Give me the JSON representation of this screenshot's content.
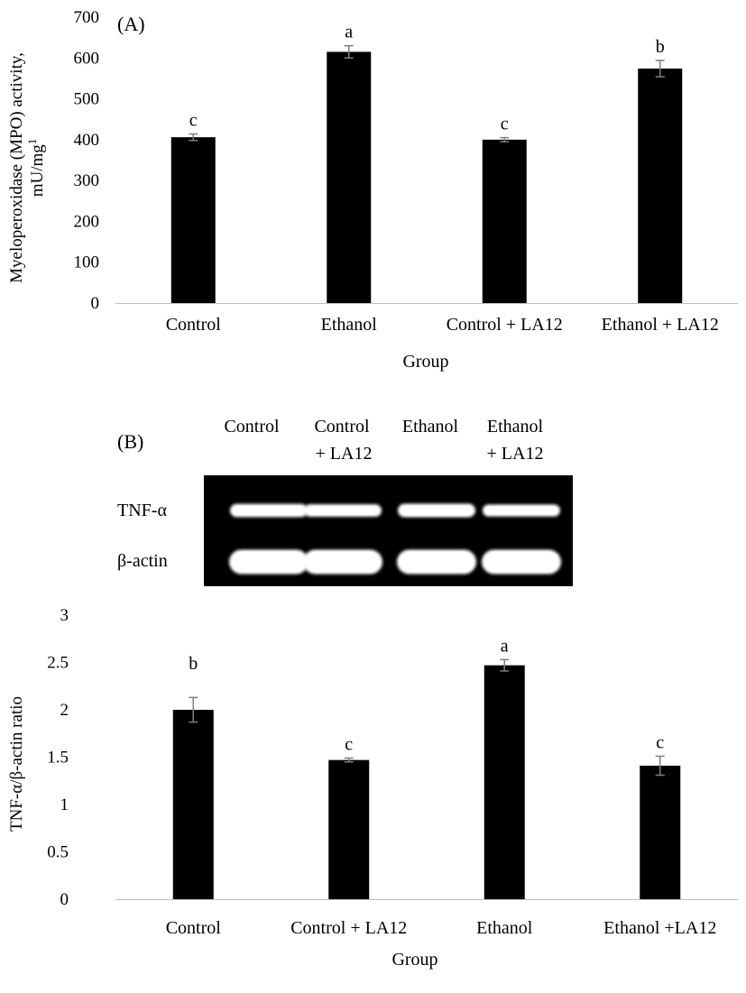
{
  "panel_a": {
    "panel_label": "(A)",
    "ylabel_line1": "Myeloperoxidase (MPO) activity,",
    "ylabel_line2": "mU/mg",
    "ylabel_sup": "1",
    "xlabel": "Group"
  },
  "panel_b": {
    "panel_label": "(B)",
    "gel": {
      "lane_labels": [
        {
          "line1": "Control",
          "line2": ""
        },
        {
          "line1": "Control",
          "line2": "+ LA12"
        },
        {
          "line1": "Ethanol",
          "line2": ""
        },
        {
          "line1": "Ethanol",
          "line2": "+ LA12"
        }
      ],
      "row_labels": [
        "TNF-α",
        "β-actin"
      ],
      "band_intensity": {
        "TNF-α": [
          0.92,
          0.8,
          1.0,
          0.72
        ],
        "β-actin": [
          1.0,
          1.0,
          1.0,
          1.0
        ]
      }
    },
    "ylabel": "TNF-α/β-actin ratio",
    "xlabel": "Group"
  },
  "chart_data": [
    {
      "type": "bar",
      "title": "",
      "xlabel": "Group",
      "ylabel": "Myeloperoxidase (MPO) activity, mU/mg1",
      "categories": [
        "Control",
        "Ethanol",
        "Control + LA12",
        "Ethanol + LA12"
      ],
      "values": [
        406,
        615,
        400,
        574
      ],
      "errors": [
        8,
        15,
        5,
        20
      ],
      "letters": [
        "c",
        "a",
        "c",
        "b"
      ],
      "ylim": [
        0,
        700
      ],
      "yticks": [
        0,
        100,
        200,
        300,
        400,
        500,
        600,
        700
      ],
      "bar_color": "#000000",
      "grid": false,
      "legend": "none"
    },
    {
      "type": "bar",
      "title": "",
      "xlabel": "Group",
      "ylabel": "TNF-α/β-actin ratio",
      "categories": [
        "Control",
        "Control + LA12",
        "Ethanol",
        "Ethanol +LA12"
      ],
      "values": [
        2.0,
        1.47,
        2.47,
        1.41
      ],
      "errors": [
        0.13,
        0.02,
        0.06,
        0.1
      ],
      "letters": [
        "b",
        "c",
        "a",
        "c"
      ],
      "ylim": [
        0,
        3
      ],
      "yticks": [
        "0",
        "0.5",
        "1",
        "1.5",
        "2",
        "2.5",
        "3"
      ],
      "bar_color": "#000000",
      "grid": false,
      "legend": "none"
    }
  ]
}
